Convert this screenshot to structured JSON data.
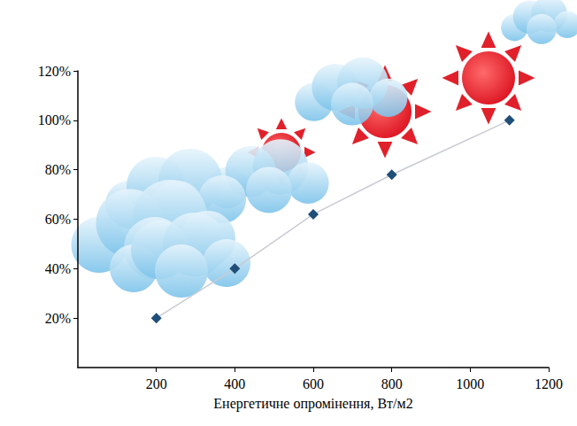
{
  "chart_data": {
    "type": "line",
    "x_label": "Енергетичне опромінення, Вт/м2",
    "x": [
      200,
      400,
      600,
      800,
      1100
    ],
    "values": [
      20,
      40,
      62,
      78,
      100
    ],
    "color": "#1f4e79",
    "marker": "diamond",
    "line_style": "solid",
    "xlim": [
      0,
      1200
    ],
    "xticks": [
      200,
      400,
      600,
      800,
      1000,
      1200
    ],
    "ylim": [
      0,
      120
    ],
    "yticks": [
      {
        "value": 20,
        "label": "20%"
      },
      {
        "value": 40,
        "label": "40%"
      },
      {
        "value": 60,
        "label": "60%"
      },
      {
        "value": 80,
        "label": "80%"
      },
      {
        "value": 100,
        "label": "100%"
      },
      {
        "value": 120,
        "label": "120%"
      }
    ],
    "grid": false
  }
}
